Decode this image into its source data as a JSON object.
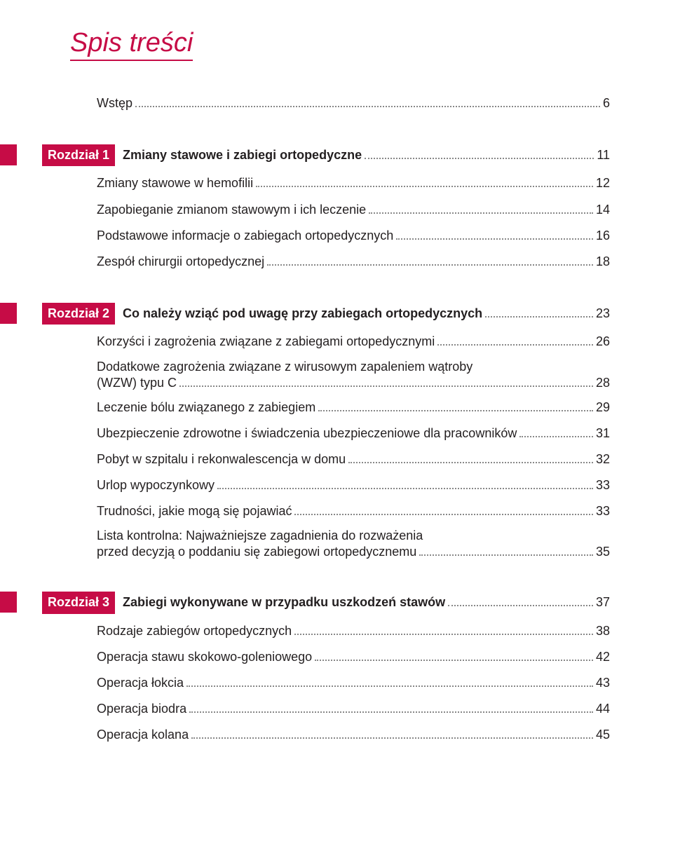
{
  "title": "Spis treści",
  "entries": [
    {
      "kind": "plain",
      "label": "Wstęp",
      "page": "6",
      "sub": true,
      "mtop": false
    },
    {
      "kind": "chapter",
      "badge": "Rozdział 1",
      "title": "Zmiany stawowe i zabiegi ortopedyczne",
      "page": "11"
    },
    {
      "kind": "plain",
      "label": "Zmiany stawowe w hemofilii",
      "page": "12",
      "sub": true
    },
    {
      "kind": "plain",
      "label": "Zapobieganie zmianom stawowym i ich leczenie",
      "page": "14",
      "sub": true
    },
    {
      "kind": "plain",
      "label": "Podstawowe informacje o zabiegach ortopedycznych",
      "page": "16",
      "sub": true
    },
    {
      "kind": "plain",
      "label": "Zespół chirurgii ortopedycznej",
      "page": "18",
      "sub": true
    },
    {
      "kind": "chapter",
      "badge": "Rozdział 2",
      "title": "Co należy wziąć pod uwagę przy zabiegach ortopedycznych",
      "page": "23"
    },
    {
      "kind": "plain",
      "label": "Korzyści i zagrożenia związane z zabiegami ortopedycznymi",
      "page": "26",
      "sub": true
    },
    {
      "kind": "multi",
      "line1": "Dodatkowe zagrożenia związane z wirusowym zapaleniem wątroby",
      "line2": "(WZW) typu C",
      "page": "28"
    },
    {
      "kind": "plain",
      "label": "Leczenie bólu związanego z zabiegiem",
      "page": "29",
      "sub": true
    },
    {
      "kind": "plain",
      "label": "Ubezpieczenie zdrowotne i świadczenia ubezpieczeniowe dla pracowników",
      "page": "31",
      "sub": true
    },
    {
      "kind": "plain",
      "label": "Pobyt w szpitalu i rekonwalescencja w domu",
      "page": "32",
      "sub": true
    },
    {
      "kind": "plain",
      "label": "Urlop wypoczynkowy",
      "page": "33",
      "sub": true
    },
    {
      "kind": "plain",
      "label": "Trudności, jakie mogą się pojawiać",
      "page": "33",
      "sub": true
    },
    {
      "kind": "multi",
      "line1": "Lista kontrolna: Najważniejsze zagadnienia do rozważenia",
      "line2": "przed decyzją o poddaniu się zabiegowi ortopedycznemu",
      "page": "35"
    },
    {
      "kind": "chapter",
      "badge": "Rozdział 3",
      "title": "Zabiegi wykonywane w przypadku uszkodzeń stawów",
      "page": "37"
    },
    {
      "kind": "plain",
      "label": "Rodzaje zabiegów ortopedycznych",
      "page": "38",
      "sub": true
    },
    {
      "kind": "plain",
      "label": "Operacja stawu skokowo-goleniowego",
      "page": "42",
      "sub": true
    },
    {
      "kind": "plain",
      "label": "Operacja łokcia",
      "page": "43",
      "sub": true
    },
    {
      "kind": "plain",
      "label": "Operacja biodra",
      "page": "44",
      "sub": true
    },
    {
      "kind": "plain",
      "label": "Operacja kolana",
      "page": "45",
      "sub": true
    }
  ],
  "colors": {
    "accent": "#c60c46",
    "text": "#231f20",
    "dots": "#888888",
    "background": "#ffffff"
  },
  "typography": {
    "title_fontsize": 38,
    "entry_fontsize": 18,
    "title_style": "italic"
  }
}
